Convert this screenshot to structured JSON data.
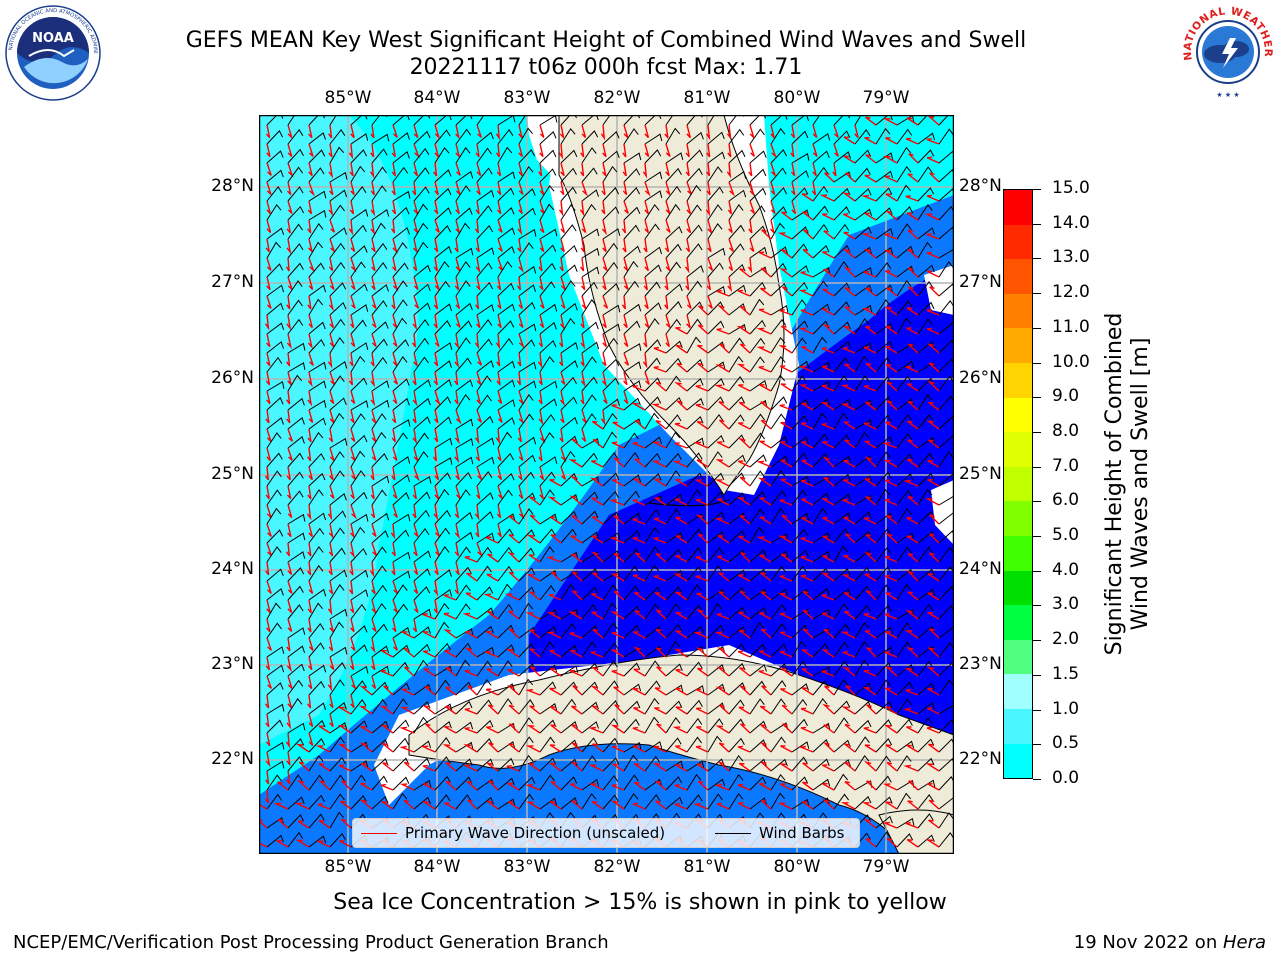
{
  "header": {
    "title_line1": "GEFS MEAN Key West Significant Height of Combined Wind Waves and Swell",
    "title_line2": "20221117 t06z 000h fcst   Max: 1.71"
  },
  "logos": {
    "left": "NOAA",
    "left_ring_text": "NATIONAL OCEANIC AND ATMOSPHERIC ADMINISTRATION · U.S. DEPARTMENT OF COMMERCE",
    "right": "NATIONAL WEATHER SERVICE"
  },
  "map": {
    "lon_labels": [
      "85°W",
      "84°W",
      "83°W",
      "82°W",
      "81°W",
      "80°W",
      "79°W"
    ],
    "lat_labels": [
      "28°N",
      "27°N",
      "26°N",
      "25°N",
      "24°N",
      "23°N",
      "22°N"
    ],
    "land_color": "#efebd9",
    "colors": {
      "band_0_0_5": "#0000ff",
      "band_0_5_1": "#0a78ff",
      "band_1_1_5": "#00ffff",
      "band_1_5_2": "#4af6ff",
      "gridline": "#b4b4b4",
      "wave_arrow": "#ff0000",
      "wind_barb": "#000000"
    }
  },
  "legend": {
    "wave": "Primary Wave Direction (unscaled)",
    "wind": "Wind Barbs"
  },
  "colorbar": {
    "title_line1": "Significant Height of Combined",
    "title_line2": "Wind Waves and Swell [m]",
    "ticks": [
      "15.0",
      "14.0",
      "13.0",
      "12.0",
      "11.0",
      "10.0",
      "9.0",
      "8.0",
      "7.0",
      "6.0",
      "5.0",
      "4.0",
      "3.0",
      "2.0",
      "1.5",
      "1.0",
      "0.5",
      "0.0"
    ],
    "colors": [
      "#ff0000",
      "#ff2a00",
      "#ff5500",
      "#ff7f00",
      "#ffaa00",
      "#ffd400",
      "#ffff00",
      "#e0ff00",
      "#c0ff00",
      "#80ff00",
      "#40ff00",
      "#00e000",
      "#00ff40",
      "#50ff80",
      "#a0ffff",
      "#4af6ff",
      "#00ffff",
      "#0a78ff",
      "#0000ff"
    ]
  },
  "caption": "Sea Ice Concentration > 15% is shown in pink to yellow",
  "footer": {
    "left": "NCEP/EMC/Verification Post Processing Product Generation Branch",
    "right_prefix": "19 Nov 2022 on ",
    "right_host": "Hera"
  }
}
